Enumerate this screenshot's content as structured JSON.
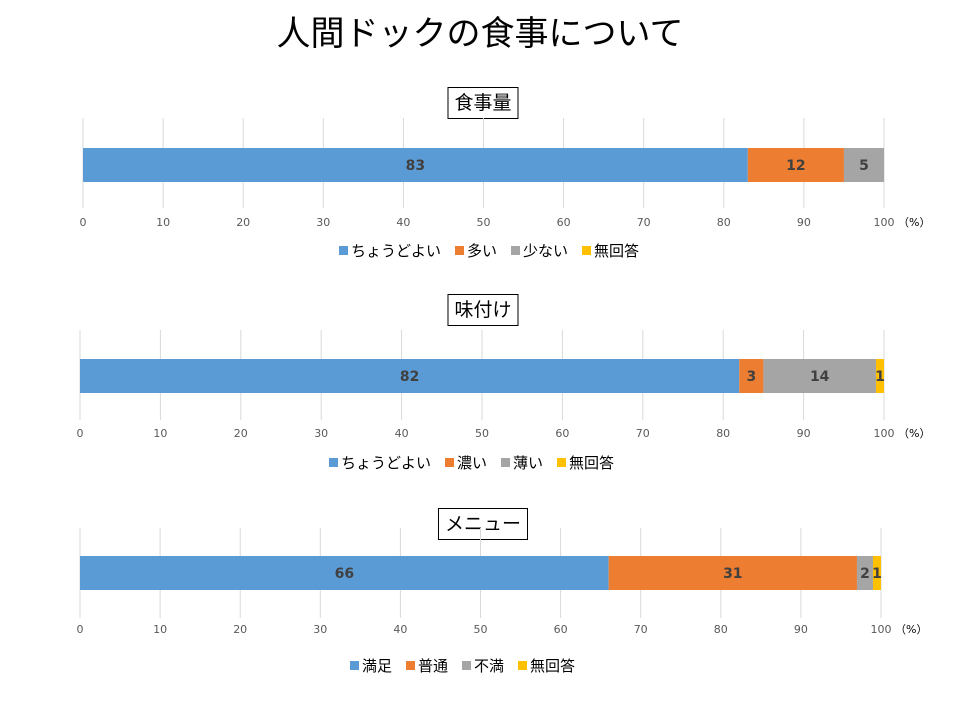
{
  "title": "人間ドックの食事について",
  "colors": {
    "blue": "#5B9BD5",
    "orange": "#ED7D31",
    "gray": "#A5A5A5",
    "yellow": "#FFC000",
    "grid": "#D9D9D9",
    "tick_text": "#595959",
    "label_text": "#404040"
  },
  "chart_data": [
    {
      "type": "bar",
      "orientation": "horizontal",
      "stacked": true,
      "title": "食事量",
      "xlim": [
        0,
        100
      ],
      "ticks": [
        "0",
        "10",
        "20",
        "30",
        "40",
        "50",
        "60",
        "70",
        "80",
        "90",
        "100"
      ],
      "unit": "（%）",
      "grid": true,
      "legend_position": "bottom",
      "series": [
        {
          "name": "ちょうどよい",
          "value": 83,
          "label": "83",
          "color": "#5B9BD5"
        },
        {
          "name": "多い",
          "value": 12,
          "label": "12",
          "color": "#ED7D31"
        },
        {
          "name": "少ない",
          "value": 5,
          "label": "5",
          "color": "#A5A5A5"
        },
        {
          "name": "無回答",
          "value": 0,
          "label": "",
          "color": "#FFC000"
        }
      ]
    },
    {
      "type": "bar",
      "orientation": "horizontal",
      "stacked": true,
      "title": "味付け",
      "xlim": [
        0,
        100
      ],
      "ticks": [
        "0",
        "10",
        "20",
        "30",
        "40",
        "50",
        "60",
        "70",
        "80",
        "90",
        "100"
      ],
      "unit": "（%）",
      "grid": true,
      "legend_position": "bottom",
      "series": [
        {
          "name": "ちょうどよい",
          "value": 82,
          "label": "82",
          "color": "#5B9BD5"
        },
        {
          "name": "濃い",
          "value": 3,
          "label": "3",
          "color": "#ED7D31"
        },
        {
          "name": "薄い",
          "value": 14,
          "label": "14",
          "color": "#A5A5A5"
        },
        {
          "name": "無回答",
          "value": 1,
          "label": "1",
          "color": "#FFC000"
        }
      ]
    },
    {
      "type": "bar",
      "orientation": "horizontal",
      "stacked": true,
      "title": "メニュー",
      "xlim": [
        0,
        100
      ],
      "ticks": [
        "0",
        "10",
        "20",
        "30",
        "40",
        "50",
        "60",
        "70",
        "80",
        "90",
        "100"
      ],
      "unit": "（%）",
      "grid": true,
      "legend_position": "bottom",
      "series": [
        {
          "name": "満足",
          "value": 66,
          "label": "66",
          "color": "#5B9BD5"
        },
        {
          "name": "普通",
          "value": 31,
          "label": "31",
          "color": "#ED7D31"
        },
        {
          "name": "不満",
          "value": 2,
          "label": "2",
          "color": "#A5A5A5"
        },
        {
          "name": "無回答",
          "value": 1,
          "label": "1",
          "color": "#FFC000"
        }
      ]
    }
  ]
}
